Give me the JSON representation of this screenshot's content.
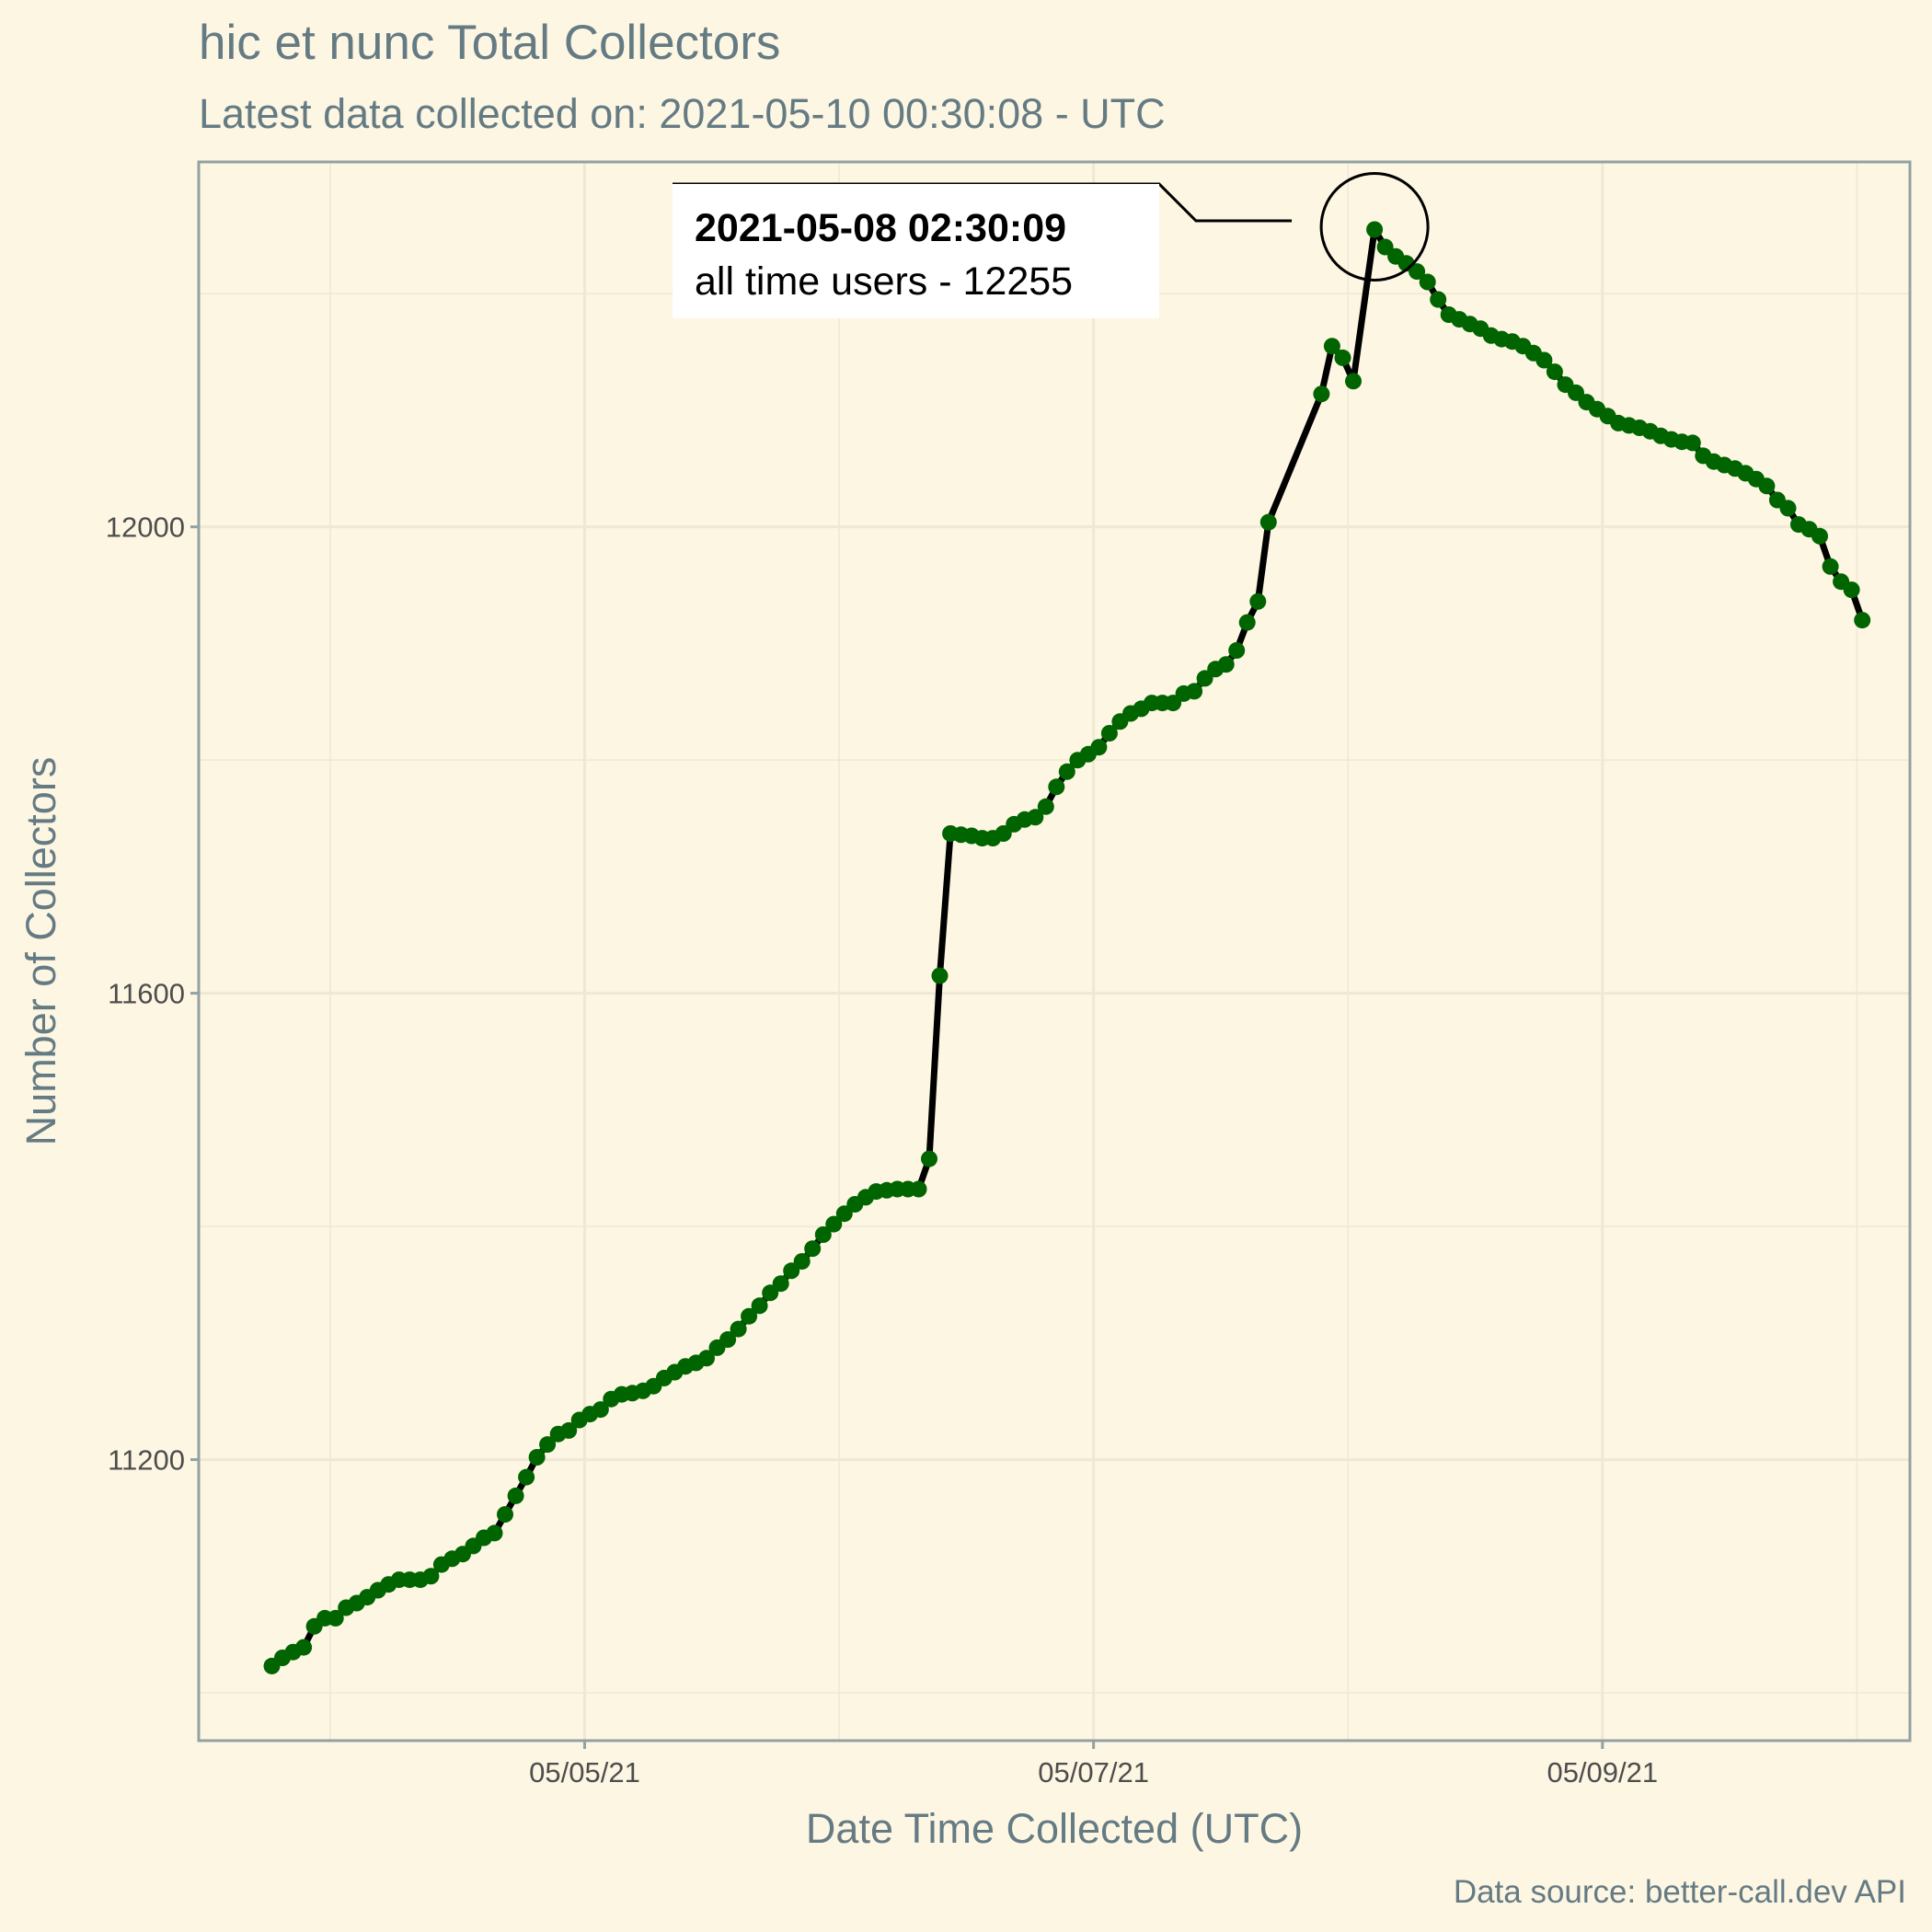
{
  "colors": {
    "background": "#fdf6e3",
    "text_muted": "#657b83",
    "grid": "#eee8d5",
    "line": "#000000",
    "point": "#006400",
    "callout_box": "#ffffff"
  },
  "chart_data": {
    "type": "line",
    "title": "hic et nunc Total Collectors",
    "subtitle": "Latest data collected on: 2021-05-10 00:30:08  - UTC",
    "xlabel": "Date Time Collected (UTC)",
    "ylabel": "Number of Collectors",
    "caption": "Data source: better-call.dev API",
    "x_ticks": [
      {
        "x": "2021-05-05",
        "label": "05/05/21"
      },
      {
        "x": "2021-05-07",
        "label": "05/07/21"
      },
      {
        "x": "2021-05-09",
        "label": "05/09/21"
      }
    ],
    "y_ticks": [
      11200,
      11600,
      12000
    ],
    "xlim": [
      "2021-05-03T11:36:00",
      "2021-05-10T05:00:00"
    ],
    "ylim": [
      10959,
      12313
    ],
    "grid": true,
    "legend": "none",
    "annotation": {
      "x": "2021-05-08T02:30:09",
      "y": 12255,
      "title": "2021-05-08 02:30:09",
      "text": "all time users - 12255",
      "marker": "circle"
    },
    "series": [
      {
        "points": [
          [
            "2021-05-03T18:30:00",
            11023
          ],
          [
            "2021-05-03T19:30:00",
            11030
          ],
          [
            "2021-05-03T20:30:00",
            11035
          ],
          [
            "2021-05-03T21:30:00",
            11039
          ],
          [
            "2021-05-03T22:30:00",
            11057
          ],
          [
            "2021-05-03T23:30:00",
            11064
          ],
          [
            "2021-05-04T00:30:00",
            11064
          ],
          [
            "2021-05-04T01:30:00",
            11073
          ],
          [
            "2021-05-04T02:30:00",
            11077
          ],
          [
            "2021-05-04T03:30:00",
            11082
          ],
          [
            "2021-05-04T04:30:00",
            11088
          ],
          [
            "2021-05-04T05:30:00",
            11093
          ],
          [
            "2021-05-04T06:30:00",
            11097
          ],
          [
            "2021-05-04T07:30:00",
            11097
          ],
          [
            "2021-05-04T08:30:00",
            11097
          ],
          [
            "2021-05-04T09:30:00",
            11100
          ],
          [
            "2021-05-04T10:30:00",
            11110
          ],
          [
            "2021-05-04T11:30:00",
            11115
          ],
          [
            "2021-05-04T12:30:00",
            11119
          ],
          [
            "2021-05-04T13:30:00",
            11126
          ],
          [
            "2021-05-04T14:30:00",
            11133
          ],
          [
            "2021-05-04T15:30:00",
            11137
          ],
          [
            "2021-05-04T16:30:00",
            11153
          ],
          [
            "2021-05-04T17:30:00",
            11169
          ],
          [
            "2021-05-04T18:30:00",
            11185
          ],
          [
            "2021-05-04T19:30:00",
            11202
          ],
          [
            "2021-05-04T20:30:00",
            11213
          ],
          [
            "2021-05-04T21:30:00",
            11222
          ],
          [
            "2021-05-04T22:30:00",
            11225
          ],
          [
            "2021-05-04T23:30:00",
            11234
          ],
          [
            "2021-05-05T00:30:00",
            11239
          ],
          [
            "2021-05-05T01:30:00",
            11243
          ],
          [
            "2021-05-05T02:30:00",
            11252
          ],
          [
            "2021-05-05T03:30:00",
            11256
          ],
          [
            "2021-05-05T04:30:00",
            11257
          ],
          [
            "2021-05-05T05:30:00",
            11259
          ],
          [
            "2021-05-05T06:30:00",
            11263
          ],
          [
            "2021-05-05T07:30:00",
            11270
          ],
          [
            "2021-05-05T08:30:00",
            11275
          ],
          [
            "2021-05-05T09:30:00",
            11280
          ],
          [
            "2021-05-05T10:30:00",
            11283
          ],
          [
            "2021-05-05T11:30:00",
            11287
          ],
          [
            "2021-05-05T12:30:00",
            11296
          ],
          [
            "2021-05-05T13:30:00",
            11303
          ],
          [
            "2021-05-05T14:30:00",
            11312
          ],
          [
            "2021-05-05T15:30:00",
            11323
          ],
          [
            "2021-05-05T16:30:00",
            11332
          ],
          [
            "2021-05-05T17:30:00",
            11343
          ],
          [
            "2021-05-05T18:30:00",
            11351
          ],
          [
            "2021-05-05T19:30:00",
            11362
          ],
          [
            "2021-05-05T20:30:00",
            11370
          ],
          [
            "2021-05-05T21:30:00",
            11381
          ],
          [
            "2021-05-05T22:30:00",
            11393
          ],
          [
            "2021-05-05T23:30:00",
            11402
          ],
          [
            "2021-05-06T00:30:00",
            11411
          ],
          [
            "2021-05-06T01:30:00",
            11419
          ],
          [
            "2021-05-06T02:30:00",
            11425
          ],
          [
            "2021-05-06T03:30:00",
            11430
          ],
          [
            "2021-05-06T04:30:00",
            11431
          ],
          [
            "2021-05-06T05:30:00",
            11432
          ],
          [
            "2021-05-06T06:30:00",
            11432
          ],
          [
            "2021-05-06T07:30:00",
            11432
          ],
          [
            "2021-05-06T08:30:00",
            11458
          ],
          [
            "2021-05-06T09:30:00",
            11615
          ],
          [
            "2021-05-06T10:30:00",
            11737
          ],
          [
            "2021-05-06T11:30:00",
            11736
          ],
          [
            "2021-05-06T12:30:00",
            11735
          ],
          [
            "2021-05-06T13:30:00",
            11733
          ],
          [
            "2021-05-06T14:30:00",
            11733
          ],
          [
            "2021-05-06T15:30:00",
            11737
          ],
          [
            "2021-05-06T16:30:00",
            11745
          ],
          [
            "2021-05-06T17:30:00",
            11749
          ],
          [
            "2021-05-06T18:30:00",
            11751
          ],
          [
            "2021-05-06T19:30:00",
            11760
          ],
          [
            "2021-05-06T20:30:00",
            11777
          ],
          [
            "2021-05-06T21:30:00",
            11790
          ],
          [
            "2021-05-06T22:30:00",
            11800
          ],
          [
            "2021-05-06T23:30:00",
            11805
          ],
          [
            "2021-05-07T00:30:00",
            11811
          ],
          [
            "2021-05-07T01:30:00",
            11823
          ],
          [
            "2021-05-07T02:30:00",
            11833
          ],
          [
            "2021-05-07T03:30:00",
            11840
          ],
          [
            "2021-05-07T04:30:00",
            11844
          ],
          [
            "2021-05-07T05:30:00",
            11849
          ],
          [
            "2021-05-07T06:30:00",
            11849
          ],
          [
            "2021-05-07T07:30:00",
            11849
          ],
          [
            "2021-05-07T08:30:00",
            11857
          ],
          [
            "2021-05-07T09:30:00",
            11859
          ],
          [
            "2021-05-07T10:30:00",
            11870
          ],
          [
            "2021-05-07T11:30:00",
            11878
          ],
          [
            "2021-05-07T12:30:00",
            11882
          ],
          [
            "2021-05-07T13:30:00",
            11894
          ],
          [
            "2021-05-07T14:30:00",
            11918
          ],
          [
            "2021-05-07T15:30:00",
            11936
          ],
          [
            "2021-05-07T16:30:00",
            12004
          ],
          [
            "2021-05-07T21:30:00",
            12114
          ],
          [
            "2021-05-07T22:30:00",
            12155
          ],
          [
            "2021-05-07T23:30:00",
            12145
          ],
          [
            "2021-05-08T00:30:00",
            12125
          ],
          [
            "2021-05-08T02:30:09",
            12255
          ],
          [
            "2021-05-08T03:30:00",
            12240
          ],
          [
            "2021-05-08T04:30:00",
            12232
          ],
          [
            "2021-05-08T05:30:00",
            12226
          ],
          [
            "2021-05-08T06:30:00",
            12219
          ],
          [
            "2021-05-08T07:30:00",
            12210
          ],
          [
            "2021-05-08T08:30:00",
            12195
          ],
          [
            "2021-05-08T09:30:00",
            12182
          ],
          [
            "2021-05-08T10:30:00",
            12178
          ],
          [
            "2021-05-08T11:30:00",
            12174
          ],
          [
            "2021-05-08T12:30:00",
            12170
          ],
          [
            "2021-05-08T13:30:00",
            12164
          ],
          [
            "2021-05-08T14:30:00",
            12161
          ],
          [
            "2021-05-08T15:30:00",
            12159
          ],
          [
            "2021-05-08T16:30:00",
            12155
          ],
          [
            "2021-05-08T17:30:00",
            12149
          ],
          [
            "2021-05-08T18:30:00",
            12143
          ],
          [
            "2021-05-08T19:30:00",
            12133
          ],
          [
            "2021-05-08T20:30:00",
            12122
          ],
          [
            "2021-05-08T21:30:00",
            12115
          ],
          [
            "2021-05-08T22:30:00",
            12107
          ],
          [
            "2021-05-08T23:30:00",
            12101
          ],
          [
            "2021-05-09T00:30:00",
            12095
          ],
          [
            "2021-05-09T01:30:00",
            12089
          ],
          [
            "2021-05-09T02:30:00",
            12087
          ],
          [
            "2021-05-09T03:30:00",
            12085
          ],
          [
            "2021-05-09T04:30:00",
            12082
          ],
          [
            "2021-05-09T05:30:00",
            12078
          ],
          [
            "2021-05-09T06:30:00",
            12075
          ],
          [
            "2021-05-09T07:30:00",
            12073
          ],
          [
            "2021-05-09T08:30:00",
            12072
          ],
          [
            "2021-05-09T09:30:00",
            12061
          ],
          [
            "2021-05-09T10:30:00",
            12056
          ],
          [
            "2021-05-09T11:30:00",
            12053
          ],
          [
            "2021-05-09T12:30:00",
            12050
          ],
          [
            "2021-05-09T13:30:00",
            12046
          ],
          [
            "2021-05-09T14:30:00",
            12041
          ],
          [
            "2021-05-09T15:30:00",
            12035
          ],
          [
            "2021-05-09T16:30:00",
            12023
          ],
          [
            "2021-05-09T17:30:00",
            12016
          ],
          [
            "2021-05-09T18:30:00",
            12002
          ],
          [
            "2021-05-09T19:30:00",
            11998
          ],
          [
            "2021-05-09T20:30:00",
            11992
          ],
          [
            "2021-05-09T21:30:00",
            11966
          ],
          [
            "2021-05-09T22:30:00",
            11953
          ],
          [
            "2021-05-09T23:30:00",
            11946
          ],
          [
            "2021-05-10T00:30:08",
            11920
          ]
        ]
      }
    ]
  }
}
